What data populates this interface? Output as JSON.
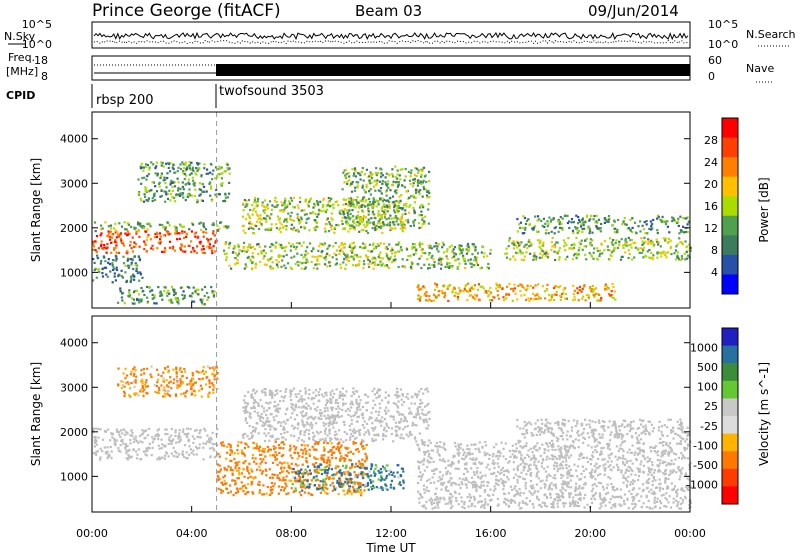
{
  "header": {
    "station": "Prince George (fitACF)",
    "beam": "Beam 03",
    "date": "09/Jun/2014"
  },
  "side_labels": {
    "nsky": "N.Sky",
    "nsearch": "N.Search",
    "freq_line1": "Freq.",
    "freq_line2": "[MHz]",
    "nave": "Nave",
    "cpid": "CPID"
  },
  "noise_panel": {
    "left_ticks": [
      "10^5",
      "10^0"
    ],
    "right_ticks": [
      "10^5",
      "10^0"
    ]
  },
  "freq_panel": {
    "left_ticks": [
      "18",
      "8"
    ],
    "right_ticks": [
      "60",
      "0"
    ]
  },
  "cpid_panel": {
    "programs": [
      {
        "label": "rbsp 200",
        "start_hour": 0,
        "end_hour": 5
      },
      {
        "label": "twofsound 3503",
        "start_hour": 5,
        "end_hour": 24
      }
    ]
  },
  "colors": {
    "power_scale": [
      "#0000ff",
      "#2850a8",
      "#3c7c5c",
      "#50a050",
      "#aadc00",
      "#ffc000",
      "#ff8000",
      "#ff4000",
      "#ff0000"
    ],
    "velocity_scale": [
      "#2020c0",
      "#2870a0",
      "#3c8c3c",
      "#64c832",
      "#c8c8c8",
      "#dcdcdc",
      "#ffb400",
      "#ff7800",
      "#ff3c00",
      "#ff0000"
    ],
    "ground_scatter": "#bebebe"
  },
  "chart_data": [
    {
      "type": "heatmap",
      "name": "power",
      "title": "",
      "xlabel": "",
      "ylabel": "Slant Range [km]",
      "xlim": [
        0,
        24
      ],
      "ylim": [
        200,
        4600
      ],
      "y_ticks": [
        "1000",
        "2000",
        "3000",
        "4000"
      ],
      "colorbar": {
        "label": "Power [dB]",
        "ticks": [
          "28",
          "24",
          "20",
          "16",
          "12",
          "8",
          "4"
        ],
        "range": [
          0,
          30
        ]
      },
      "echo_regions": [
        {
          "t0": 0,
          "t1": 5.0,
          "r0": 1450,
          "r1": 1950,
          "power": 26
        },
        {
          "t0": 0,
          "t1": 5.5,
          "r0": 1950,
          "r1": 2150,
          "power": 12
        },
        {
          "t0": 0,
          "t1": 2.0,
          "r0": 800,
          "r1": 1400,
          "power": 8
        },
        {
          "t0": 1.8,
          "t1": 5.5,
          "r0": 2600,
          "r1": 3500,
          "power": 10
        },
        {
          "t0": 5.2,
          "t1": 12.0,
          "r0": 1100,
          "r1": 1700,
          "power": 14
        },
        {
          "t0": 6.0,
          "t1": 12.5,
          "r0": 1900,
          "r1": 2700,
          "power": 14
        },
        {
          "t0": 10.0,
          "t1": 13.5,
          "r0": 2000,
          "r1": 3400,
          "power": 12
        },
        {
          "t0": 12.0,
          "t1": 16.0,
          "r0": 1100,
          "r1": 1700,
          "power": 12
        },
        {
          "t0": 13.0,
          "t1": 21.0,
          "r0": 380,
          "r1": 780,
          "power": 20
        },
        {
          "t0": 16.5,
          "t1": 24.0,
          "r0": 1300,
          "r1": 1800,
          "power": 14
        },
        {
          "t0": 17.0,
          "t1": 24.0,
          "r0": 1900,
          "r1": 2300,
          "power": 10
        },
        {
          "t0": 1.0,
          "t1": 5.0,
          "r0": 300,
          "r1": 700,
          "power": 10
        }
      ]
    },
    {
      "type": "heatmap",
      "name": "velocity",
      "title": "",
      "xlabel": "Time UT",
      "ylabel": "Slant Range [km]",
      "xlim": [
        0,
        24
      ],
      "ylim": [
        200,
        4600
      ],
      "x_ticks": [
        "00:00",
        "04:00",
        "08:00",
        "12:00",
        "16:00",
        "20:00",
        "00:00"
      ],
      "y_ticks": [
        "1000",
        "2000",
        "3000",
        "4000"
      ],
      "colorbar": {
        "label": "Velocity [m s^-1]",
        "ticks": [
          "1000",
          "500",
          "100",
          "25",
          "-25",
          "-100",
          "-500",
          "-1000"
        ],
        "range": [
          -1000,
          1000
        ]
      },
      "echo_regions": [
        {
          "t0": 0,
          "t1": 5.0,
          "r0": 1400,
          "r1": 2100,
          "velocity": 0,
          "ground_scatter": true
        },
        {
          "t0": 5.0,
          "t1": 11.0,
          "r0": 600,
          "r1": 1800,
          "velocity": -200
        },
        {
          "t0": 8.0,
          "t1": 12.5,
          "r0": 700,
          "r1": 1300,
          "velocity": 150
        },
        {
          "t0": 6.0,
          "t1": 13.5,
          "r0": 1800,
          "r1": 3000,
          "velocity": 0,
          "ground_scatter": true
        },
        {
          "t0": 13.0,
          "t1": 24.0,
          "r0": 300,
          "r1": 1800,
          "velocity": 0,
          "ground_scatter": true
        },
        {
          "t0": 17.0,
          "t1": 24.0,
          "r0": 1800,
          "r1": 2300,
          "velocity": 0,
          "ground_scatter": true
        },
        {
          "t0": 1.0,
          "t1": 5.0,
          "r0": 2800,
          "r1": 3500,
          "velocity": -150
        }
      ]
    }
  ]
}
